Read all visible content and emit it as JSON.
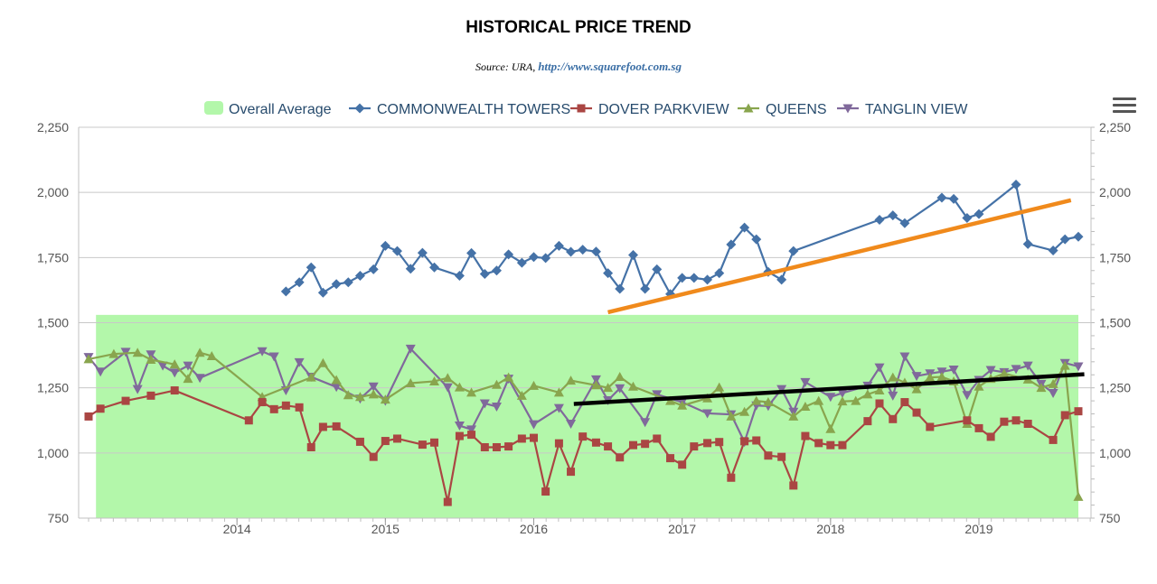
{
  "title": "HISTORICAL PRICE TREND",
  "source_prefix": "Source: URA, ",
  "source_link": "http://www.squarefoot.com.sg",
  "chart_data": {
    "type": "line",
    "title": "HISTORICAL PRICE TREND",
    "ylim": [
      750,
      2250
    ],
    "yticks": [
      750,
      1000,
      1250,
      1500,
      1750,
      2000,
      2250
    ],
    "ytick_labels": [
      "750",
      "1,000",
      "1,250",
      "1,500",
      "1,750",
      "2,000",
      "2,250"
    ],
    "xticks": [
      2014,
      2015,
      2016,
      2017,
      2018,
      2019
    ],
    "xtick_labels": [
      "2014",
      "2015",
      "2016",
      "2017",
      "2018",
      "2019"
    ],
    "xlim": [
      2013.0,
      2019.75
    ],
    "grid": true,
    "legend_position": "top",
    "dual_axis_labels": true,
    "band": {
      "name": "Overall Average",
      "x_range": [
        2013.05,
        2019.67
      ],
      "y_range": [
        750,
        1530
      ],
      "color": "#b3f7aa"
    },
    "series": [
      {
        "name": "COMMONWEALTH TOWERS",
        "color": "#4572a7",
        "marker": "diamond",
        "points": [
          [
            2014.33,
            1620
          ],
          [
            2014.42,
            1655
          ],
          [
            2014.5,
            1712
          ],
          [
            2014.58,
            1615
          ],
          [
            2014.67,
            1648
          ],
          [
            2014.75,
            1655
          ],
          [
            2014.83,
            1680
          ],
          [
            2014.92,
            1705
          ],
          [
            2015.0,
            1795
          ],
          [
            2015.08,
            1775
          ],
          [
            2015.17,
            1707
          ],
          [
            2015.25,
            1768
          ],
          [
            2015.33,
            1712
          ],
          [
            2015.5,
            1680
          ],
          [
            2015.58,
            1767
          ],
          [
            2015.67,
            1687
          ],
          [
            2015.75,
            1700
          ],
          [
            2015.83,
            1762
          ],
          [
            2015.92,
            1730
          ],
          [
            2016.0,
            1752
          ],
          [
            2016.08,
            1748
          ],
          [
            2016.17,
            1795
          ],
          [
            2016.25,
            1772
          ],
          [
            2016.33,
            1780
          ],
          [
            2016.42,
            1773
          ],
          [
            2016.5,
            1690
          ],
          [
            2016.58,
            1630
          ],
          [
            2016.67,
            1760
          ],
          [
            2016.75,
            1630
          ],
          [
            2016.83,
            1705
          ],
          [
            2016.92,
            1610
          ],
          [
            2017.0,
            1672
          ],
          [
            2017.08,
            1672
          ],
          [
            2017.17,
            1665
          ],
          [
            2017.25,
            1690
          ],
          [
            2017.33,
            1800
          ],
          [
            2017.42,
            1865
          ],
          [
            2017.5,
            1820
          ],
          [
            2017.58,
            1695
          ],
          [
            2017.67,
            1665
          ],
          [
            2017.75,
            1775
          ],
          [
            2018.33,
            1895
          ],
          [
            2018.42,
            1912
          ],
          [
            2018.5,
            1882
          ],
          [
            2018.75,
            1980
          ],
          [
            2018.83,
            1975
          ],
          [
            2018.92,
            1902
          ],
          [
            2019.0,
            1917
          ],
          [
            2019.25,
            2030
          ],
          [
            2019.33,
            1802
          ],
          [
            2019.5,
            1777
          ],
          [
            2019.58,
            1820
          ],
          [
            2019.67,
            1830
          ]
        ]
      },
      {
        "name": "DOVER PARKVIEW",
        "color": "#aa4643",
        "marker": "square",
        "points": [
          [
            2013.0,
            1140
          ],
          [
            2013.08,
            1170
          ],
          [
            2013.25,
            1200
          ],
          [
            2013.42,
            1220
          ],
          [
            2013.58,
            1240
          ],
          [
            2014.08,
            1125
          ],
          [
            2014.17,
            1195
          ],
          [
            2014.25,
            1168
          ],
          [
            2014.33,
            1182
          ],
          [
            2014.42,
            1175
          ],
          [
            2014.5,
            1022
          ],
          [
            2014.58,
            1100
          ],
          [
            2014.67,
            1102
          ],
          [
            2014.83,
            1043
          ],
          [
            2014.92,
            985
          ],
          [
            2015.0,
            1046
          ],
          [
            2015.08,
            1055
          ],
          [
            2015.25,
            1032
          ],
          [
            2015.33,
            1040
          ],
          [
            2015.42,
            812
          ],
          [
            2015.5,
            1065
          ],
          [
            2015.58,
            1070
          ],
          [
            2015.67,
            1022
          ],
          [
            2015.75,
            1022
          ],
          [
            2015.83,
            1025
          ],
          [
            2015.92,
            1055
          ],
          [
            2016.0,
            1058
          ],
          [
            2016.08,
            852
          ],
          [
            2016.17,
            1037
          ],
          [
            2016.25,
            928
          ],
          [
            2016.33,
            1063
          ],
          [
            2016.42,
            1040
          ],
          [
            2016.5,
            1025
          ],
          [
            2016.58,
            983
          ],
          [
            2016.67,
            1030
          ],
          [
            2016.75,
            1035
          ],
          [
            2016.83,
            1055
          ],
          [
            2016.92,
            980
          ],
          [
            2017.0,
            955
          ],
          [
            2017.08,
            1025
          ],
          [
            2017.17,
            1038
          ],
          [
            2017.25,
            1042
          ],
          [
            2017.33,
            905
          ],
          [
            2017.42,
            1045
          ],
          [
            2017.5,
            1048
          ],
          [
            2017.58,
            990
          ],
          [
            2017.67,
            985
          ],
          [
            2017.75,
            875
          ],
          [
            2017.83,
            1065
          ],
          [
            2017.92,
            1038
          ],
          [
            2018.0,
            1030
          ],
          [
            2018.08,
            1030
          ],
          [
            2018.25,
            1122
          ],
          [
            2018.33,
            1190
          ],
          [
            2018.42,
            1130
          ],
          [
            2018.5,
            1195
          ],
          [
            2018.58,
            1155
          ],
          [
            2018.67,
            1100
          ],
          [
            2018.92,
            1125
          ],
          [
            2019.0,
            1095
          ],
          [
            2019.08,
            1062
          ],
          [
            2019.17,
            1120
          ],
          [
            2019.25,
            1125
          ],
          [
            2019.33,
            1112
          ],
          [
            2019.5,
            1050
          ],
          [
            2019.58,
            1145
          ],
          [
            2019.67,
            1160
          ]
        ]
      },
      {
        "name": "QUEENS",
        "color": "#89a54e",
        "marker": "triangle",
        "points": [
          [
            2013.0,
            1360
          ],
          [
            2013.17,
            1380
          ],
          [
            2013.33,
            1385
          ],
          [
            2013.42,
            1358
          ],
          [
            2013.58,
            1340
          ],
          [
            2013.67,
            1285
          ],
          [
            2013.75,
            1385
          ],
          [
            2013.83,
            1372
          ],
          [
            2014.17,
            1215
          ],
          [
            2014.5,
            1290
          ],
          [
            2014.58,
            1345
          ],
          [
            2014.67,
            1280
          ],
          [
            2014.75,
            1222
          ],
          [
            2014.83,
            1215
          ],
          [
            2014.92,
            1225
          ],
          [
            2015.0,
            1205
          ],
          [
            2015.17,
            1268
          ],
          [
            2015.33,
            1275
          ],
          [
            2015.42,
            1288
          ],
          [
            2015.5,
            1252
          ],
          [
            2015.58,
            1232
          ],
          [
            2015.75,
            1262
          ],
          [
            2015.83,
            1290
          ],
          [
            2015.92,
            1220
          ],
          [
            2016.0,
            1258
          ],
          [
            2016.17,
            1232
          ],
          [
            2016.25,
            1278
          ],
          [
            2016.42,
            1260
          ],
          [
            2016.5,
            1250
          ],
          [
            2016.58,
            1292
          ],
          [
            2016.67,
            1255
          ],
          [
            2016.92,
            1200
          ],
          [
            2017.0,
            1182
          ],
          [
            2017.17,
            1210
          ],
          [
            2017.25,
            1252
          ],
          [
            2017.33,
            1140
          ],
          [
            2017.42,
            1158
          ],
          [
            2017.5,
            1200
          ],
          [
            2017.58,
            1195
          ],
          [
            2017.75,
            1140
          ],
          [
            2017.83,
            1178
          ],
          [
            2017.92,
            1200
          ],
          [
            2018.0,
            1092
          ],
          [
            2018.08,
            1198
          ],
          [
            2018.17,
            1200
          ],
          [
            2018.25,
            1225
          ],
          [
            2018.33,
            1240
          ],
          [
            2018.42,
            1290
          ],
          [
            2018.5,
            1270
          ],
          [
            2018.58,
            1245
          ],
          [
            2018.67,
            1290
          ],
          [
            2018.75,
            1292
          ],
          [
            2018.83,
            1275
          ],
          [
            2018.92,
            1112
          ],
          [
            2019.0,
            1255
          ],
          [
            2019.08,
            1285
          ],
          [
            2019.17,
            1305
          ],
          [
            2019.33,
            1282
          ],
          [
            2019.42,
            1250
          ],
          [
            2019.5,
            1265
          ],
          [
            2019.58,
            1335
          ],
          [
            2019.67,
            832
          ]
        ]
      },
      {
        "name": "TANGLIN VIEW",
        "color": "#80699b",
        "marker": "triangle-down",
        "points": [
          [
            2013.0,
            1368
          ],
          [
            2013.08,
            1312
          ],
          [
            2013.25,
            1388
          ],
          [
            2013.33,
            1245
          ],
          [
            2013.42,
            1378
          ],
          [
            2013.5,
            1335
          ],
          [
            2013.58,
            1308
          ],
          [
            2013.67,
            1335
          ],
          [
            2013.75,
            1288
          ],
          [
            2014.17,
            1390
          ],
          [
            2014.25,
            1370
          ],
          [
            2014.33,
            1240
          ],
          [
            2014.42,
            1348
          ],
          [
            2014.5,
            1292
          ],
          [
            2014.67,
            1253
          ],
          [
            2014.83,
            1208
          ],
          [
            2014.92,
            1255
          ],
          [
            2015.0,
            1200
          ],
          [
            2015.17,
            1400
          ],
          [
            2015.42,
            1252
          ],
          [
            2015.5,
            1105
          ],
          [
            2015.58,
            1090
          ],
          [
            2015.67,
            1190
          ],
          [
            2015.75,
            1178
          ],
          [
            2015.83,
            1285
          ],
          [
            2016.0,
            1110
          ],
          [
            2016.17,
            1172
          ],
          [
            2016.25,
            1112
          ],
          [
            2016.42,
            1282
          ],
          [
            2016.5,
            1202
          ],
          [
            2016.58,
            1248
          ],
          [
            2016.75,
            1118
          ],
          [
            2016.83,
            1225
          ],
          [
            2017.0,
            1195
          ],
          [
            2017.17,
            1152
          ],
          [
            2017.33,
            1148
          ],
          [
            2017.42,
            1042
          ],
          [
            2017.5,
            1182
          ],
          [
            2017.58,
            1180
          ],
          [
            2017.67,
            1245
          ],
          [
            2017.75,
            1158
          ],
          [
            2017.83,
            1272
          ],
          [
            2018.0,
            1215
          ],
          [
            2018.08,
            1230
          ],
          [
            2018.25,
            1258
          ],
          [
            2018.33,
            1328
          ],
          [
            2018.42,
            1220
          ],
          [
            2018.5,
            1370
          ],
          [
            2018.58,
            1295
          ],
          [
            2018.67,
            1305
          ],
          [
            2018.75,
            1312
          ],
          [
            2018.83,
            1320
          ],
          [
            2018.92,
            1222
          ],
          [
            2019.0,
            1280
          ],
          [
            2019.08,
            1318
          ],
          [
            2019.17,
            1310
          ],
          [
            2019.25,
            1322
          ],
          [
            2019.33,
            1335
          ],
          [
            2019.42,
            1265
          ],
          [
            2019.5,
            1230
          ],
          [
            2019.58,
            1345
          ],
          [
            2019.67,
            1332
          ]
        ]
      }
    ],
    "trend_lines": [
      {
        "color": "#f08a1c",
        "from": [
          2016.5,
          1540
        ],
        "to": [
          2019.62,
          1970
        ]
      },
      {
        "color": "#000000",
        "from": [
          2016.27,
          1188
        ],
        "to": [
          2019.71,
          1302
        ]
      }
    ]
  }
}
